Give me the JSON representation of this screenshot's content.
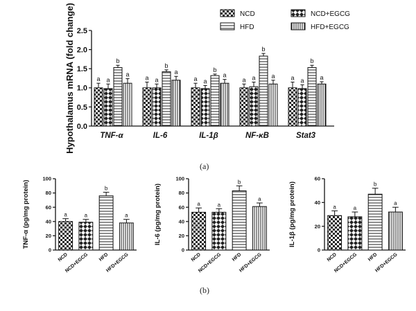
{
  "panel_a_label": "(a)",
  "panel_b_label": "(b)",
  "colors": {
    "axis": "#111111",
    "bar_stroke": "#111111",
    "fill_light": "#ffffff",
    "fill_dark": "#222222"
  },
  "chart_data": [
    {
      "id": "a",
      "type": "bar",
      "title": "",
      "xlabel": "",
      "ylabel": "Hypothalamus mRNA (fold change)",
      "ylim": [
        0,
        2.5
      ],
      "yticks": [
        "0.0",
        "0.5",
        "1.0",
        "1.5",
        "2.0",
        "2.5"
      ],
      "yticks_values": [
        0,
        0.5,
        1.0,
        1.5,
        2.0,
        2.5
      ],
      "categories": [
        "TNF-α",
        "IL-6",
        "IL-1β",
        "NF-κB",
        "Stat3"
      ],
      "legend_position": "top-right",
      "series": [
        {
          "name": "NCD",
          "pattern": "checker",
          "values": [
            1.0,
            1.0,
            1.0,
            1.0,
            1.0
          ],
          "errors": [
            0.12,
            0.15,
            0.12,
            0.1,
            0.15
          ],
          "labels": [
            "a",
            "a",
            "a",
            "a",
            "a"
          ]
        },
        {
          "name": "NCD+EGCG",
          "pattern": "diamond",
          "values": [
            0.98,
            1.0,
            0.98,
            1.03,
            0.98
          ],
          "errors": [
            0.12,
            0.1,
            0.08,
            0.12,
            0.1
          ],
          "labels": [
            "a",
            "a",
            "a",
            "a",
            "a"
          ]
        },
        {
          "name": "HFD",
          "pattern": "hlines",
          "values": [
            1.53,
            1.42,
            1.32,
            1.83,
            1.53
          ],
          "errors": [
            0.06,
            0.05,
            0.04,
            0.07,
            0.06
          ],
          "labels": [
            "b",
            "b",
            "b",
            "b",
            "b"
          ]
        },
        {
          "name": "HFD+EGCG",
          "pattern": "vlines",
          "values": [
            1.12,
            1.2,
            1.12,
            1.1,
            1.1
          ],
          "errors": [
            0.12,
            0.1,
            0.1,
            0.1,
            0.06
          ],
          "labels": [
            "a",
            "a",
            "a",
            "a",
            "a"
          ]
        }
      ]
    },
    {
      "id": "b1",
      "type": "bar",
      "title": "",
      "xlabel": "",
      "ylabel": "TNF-α  (pg/mg protein)",
      "ylim": [
        0,
        100
      ],
      "yticks": [
        "0",
        "20",
        "40",
        "60",
        "80",
        "100"
      ],
      "yticks_values": [
        0,
        20,
        40,
        60,
        80,
        100
      ],
      "categories": [
        "NCD",
        "NCD+EGCG",
        "HFD",
        "HFD+EGCG"
      ],
      "patterns": [
        "checker",
        "diamond",
        "hlines",
        "vlines"
      ],
      "values": [
        40,
        39,
        76,
        38
      ],
      "errors": [
        4,
        4,
        5,
        5
      ],
      "labels": [
        "a",
        "a",
        "b",
        "a"
      ]
    },
    {
      "id": "b2",
      "type": "bar",
      "title": "",
      "xlabel": "",
      "ylabel": "IL-6 (pg/mg protein)",
      "ylim": [
        0,
        100
      ],
      "yticks": [
        "0",
        "20",
        "40",
        "60",
        "80",
        "100"
      ],
      "yticks_values": [
        0,
        20,
        40,
        60,
        80,
        100
      ],
      "categories": [
        "NCD",
        "NCD+EGCG",
        "HFD",
        "HFD+EGCG"
      ],
      "patterns": [
        "checker",
        "diamond",
        "hlines",
        "vlines"
      ],
      "values": [
        53,
        53,
        83,
        61
      ],
      "errors": [
        6,
        5,
        7,
        5
      ],
      "labels": [
        "a",
        "a",
        "b",
        "a"
      ]
    },
    {
      "id": "b3",
      "type": "bar",
      "title": "",
      "xlabel": "",
      "ylabel": "IL-1β (pg/mg protein)",
      "ylim": [
        0,
        60
      ],
      "yticks": [
        "0",
        "20",
        "40",
        "60"
      ],
      "yticks_values": [
        0,
        20,
        40,
        60
      ],
      "categories": [
        "NCD",
        "NCD+EGCG",
        "HFD",
        "HFD+EGCG"
      ],
      "patterns": [
        "checker",
        "diamond",
        "hlines",
        "vlines"
      ],
      "values": [
        29,
        28,
        47,
        32
      ],
      "errors": [
        4,
        4,
        5,
        4
      ],
      "labels": [
        "a",
        "a",
        "b",
        "a"
      ]
    }
  ]
}
